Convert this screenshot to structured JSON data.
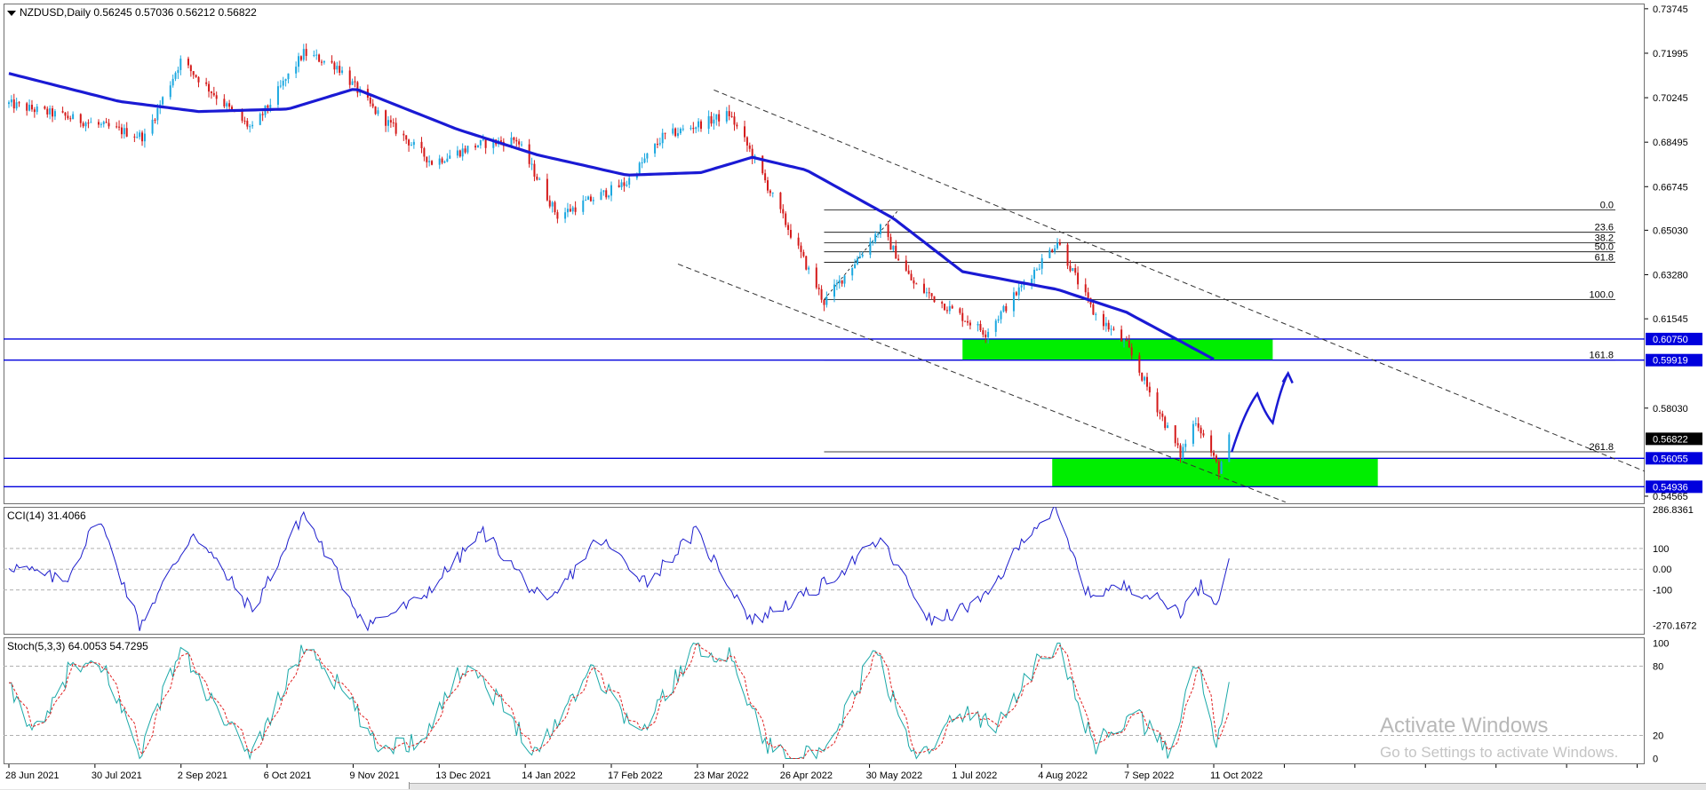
{
  "symbol_header": "NZDUSD,Daily  0.56245 0.57036 0.56212 0.56822",
  "cci_label": "CCI(14) 31.4066",
  "stoch_label": "Stoch(5,3,3) 64.0053 54.7295",
  "watermark": {
    "title": "Activate Windows",
    "subtitle": "Go to Settings to activate Windows."
  },
  "colors": {
    "bull": "#1ca8e0",
    "bear": "#d41a1a",
    "ma": "#1a1ad4",
    "zone": "#00ee00",
    "level_line": "#0000dd",
    "indicator": "#1c1ccc",
    "stoch_main": "#1aa8a8",
    "stoch_signal": "#e02020"
  },
  "chart_data": [
    {
      "type": "candlestick",
      "name": "NZDUSD, Daily",
      "ylim": [
        0.5425,
        0.7395
      ],
      "y_ticks": [
        "0.73745",
        "0.71995",
        "0.70245",
        "0.68495",
        "0.66745",
        "0.65030",
        "0.63280",
        "0.61545",
        "0.58030",
        "0.54565"
      ],
      "x_ticks": [
        "28 Jun 2021",
        "30 Jul 2021",
        "2 Sep 2021",
        "6 Oct 2021",
        "9 Nov 2021",
        "13 Dec 2021",
        "14 Jan 2022",
        "17 Feb 2022",
        "23 Mar 2022",
        "26 Apr 2022",
        "30 May 2022",
        "1 Jul 2022",
        "4 Aug 2022",
        "7 Sep 2022",
        "11 Oct 2022"
      ],
      "ohlc_anchors": [
        {
          "date": "2021-06-28",
          "close": 0.7
        },
        {
          "date": "2021-07-20",
          "close": 0.695
        },
        {
          "date": "2021-08-20",
          "close": 0.687
        },
        {
          "date": "2021-09-03",
          "close": 0.717
        },
        {
          "date": "2021-09-24",
          "close": 0.696
        },
        {
          "date": "2021-10-01",
          "close": 0.69
        },
        {
          "date": "2021-10-21",
          "close": 0.72
        },
        {
          "date": "2021-11-03",
          "close": 0.715
        },
        {
          "date": "2021-11-18",
          "close": 0.697
        },
        {
          "date": "2021-12-10",
          "close": 0.677
        },
        {
          "date": "2021-12-28",
          "close": 0.684
        },
        {
          "date": "2022-01-12",
          "close": 0.686
        },
        {
          "date": "2022-01-28",
          "close": 0.656
        },
        {
          "date": "2022-02-24",
          "close": 0.669
        },
        {
          "date": "2022-03-10",
          "close": 0.687
        },
        {
          "date": "2022-04-05",
          "close": 0.696
        },
        {
          "date": "2022-04-14",
          "close": 0.68
        },
        {
          "date": "2022-05-12",
          "close": 0.622
        },
        {
          "date": "2022-06-03",
          "close": 0.651
        },
        {
          "date": "2022-06-16",
          "close": 0.629
        },
        {
          "date": "2022-07-14",
          "close": 0.61
        },
        {
          "date": "2022-08-11",
          "close": 0.646
        },
        {
          "date": "2022-08-25",
          "close": 0.618
        },
        {
          "date": "2022-09-07",
          "close": 0.605
        },
        {
          "date": "2022-09-28",
          "close": 0.562
        },
        {
          "date": "2022-10-04",
          "close": 0.576
        },
        {
          "date": "2022-10-13",
          "close": 0.556
        },
        {
          "date": "2022-10-17",
          "close": 0.5682
        }
      ],
      "last_price": "0.56822",
      "moving_average": [
        {
          "date": "2021-06-28",
          "value": 0.712
        },
        {
          "date": "2021-08-10",
          "value": 0.701
        },
        {
          "date": "2021-09-10",
          "value": 0.697
        },
        {
          "date": "2021-10-15",
          "value": 0.698
        },
        {
          "date": "2021-11-10",
          "value": 0.706
        },
        {
          "date": "2021-12-20",
          "value": 0.69
        },
        {
          "date": "2022-01-20",
          "value": 0.68
        },
        {
          "date": "2022-02-24",
          "value": 0.672
        },
        {
          "date": "2022-03-25",
          "value": 0.673
        },
        {
          "date": "2022-04-14",
          "value": 0.679
        },
        {
          "date": "2022-05-05",
          "value": 0.674
        },
        {
          "date": "2022-06-08",
          "value": 0.655
        },
        {
          "date": "2022-07-05",
          "value": 0.634
        },
        {
          "date": "2022-08-11",
          "value": 0.627
        },
        {
          "date": "2022-09-07",
          "value": 0.618
        },
        {
          "date": "2022-10-12",
          "value": 0.599
        }
      ],
      "fibonacci": {
        "levels": [
          {
            "label": "0.0",
            "price": 0.6583
          },
          {
            "label": "23.6",
            "price": 0.6495
          },
          {
            "label": "38.2",
            "price": 0.6454
          },
          {
            "label": "50.0",
            "price": 0.6418
          },
          {
            "label": "61.8",
            "price": 0.6377
          },
          {
            "label": "100.0",
            "price": 0.623
          },
          {
            "label": "161.8",
            "price": 0.5992
          },
          {
            "label": "261.8",
            "price": 0.5631
          }
        ]
      },
      "horizontal_levels": [
        "0.60750",
        "0.59919",
        "0.56055",
        "0.54936"
      ],
      "zones": [
        {
          "top": 0.6075,
          "bottom": 0.5992,
          "from": "2022-07-05",
          "to": "2022-11-03"
        },
        {
          "top": 0.5605,
          "bottom": 0.5494,
          "from": "2022-08-09",
          "to": "2022-12-14"
        }
      ],
      "channel": [
        {
          "from": {
            "date": "2022-03-30",
            "price": 0.7055
          },
          "to": {
            "date": "2023-04-20",
            "price": 0.546
          }
        },
        {
          "from": {
            "date": "2022-03-16",
            "price": 0.637
          },
          "to": {
            "date": "2022-11-08",
            "price": 0.5433
          }
        }
      ],
      "projection_path": [
        {
          "date": "2022-10-18",
          "price": 0.563
        },
        {
          "date": "2022-10-28",
          "price": 0.586
        },
        {
          "date": "2022-11-03",
          "price": 0.5745
        },
        {
          "date": "2022-11-09",
          "price": 0.594
        }
      ]
    },
    {
      "type": "line",
      "name": "CCI(14)",
      "ylim": [
        -315,
        300
      ],
      "y_ticks": [
        "286.8361",
        "100",
        "0.00",
        "-100",
        "-270.1672"
      ],
      "reference_lines": [
        100,
        0,
        -100
      ],
      "last_value": 31.4066,
      "anchors": [
        {
          "date": "2021-06-28",
          "value": 20
        },
        {
          "date": "2021-07-20",
          "value": -60
        },
        {
          "date": "2021-08-02",
          "value": 250
        },
        {
          "date": "2021-08-18",
          "value": -270
        },
        {
          "date": "2021-09-08",
          "value": 180
        },
        {
          "date": "2021-10-01",
          "value": -200
        },
        {
          "date": "2021-10-21",
          "value": 270
        },
        {
          "date": "2021-11-14",
          "value": -270
        },
        {
          "date": "2021-12-05",
          "value": -150
        },
        {
          "date": "2021-12-30",
          "value": 180
        },
        {
          "date": "2022-01-24",
          "value": -180
        },
        {
          "date": "2022-02-13",
          "value": 150
        },
        {
          "date": "2022-03-04",
          "value": -60
        },
        {
          "date": "2022-03-23",
          "value": 180
        },
        {
          "date": "2022-04-14",
          "value": -250
        },
        {
          "date": "2022-05-09",
          "value": -100
        },
        {
          "date": "2022-06-03",
          "value": 140
        },
        {
          "date": "2022-06-23",
          "value": -260
        },
        {
          "date": "2022-07-14",
          "value": -140
        },
        {
          "date": "2022-08-01",
          "value": 200
        },
        {
          "date": "2022-08-10",
          "value": 280
        },
        {
          "date": "2022-08-23",
          "value": -120
        },
        {
          "date": "2022-09-08",
          "value": -80
        },
        {
          "date": "2022-09-28",
          "value": -200
        },
        {
          "date": "2022-10-06",
          "value": -80
        },
        {
          "date": "2022-10-12",
          "value": -150
        },
        {
          "date": "2022-10-17",
          "value": 31.4
        }
      ]
    },
    {
      "type": "line",
      "name": "Stoch(5,3,3)",
      "ylim": [
        -5,
        105
      ],
      "y_ticks": [
        "100",
        "80",
        "20",
        "0"
      ],
      "reference_lines": [
        80,
        20
      ],
      "main_last": 64.0053,
      "signal_last": 54.7295,
      "anchors": [
        {
          "date": "2021-06-28",
          "value": 60
        },
        {
          "date": "2021-07-10",
          "value": 20
        },
        {
          "date": "2021-07-22",
          "value": 80
        },
        {
          "date": "2021-08-05",
          "value": 75
        },
        {
          "date": "2021-08-18",
          "value": 5
        },
        {
          "date": "2021-09-03",
          "value": 95
        },
        {
          "date": "2021-09-20",
          "value": 30
        },
        {
          "date": "2021-10-01",
          "value": 5
        },
        {
          "date": "2021-10-22",
          "value": 100
        },
        {
          "date": "2021-11-08",
          "value": 50
        },
        {
          "date": "2021-11-18",
          "value": 10
        },
        {
          "date": "2021-12-05",
          "value": 15
        },
        {
          "date": "2021-12-24",
          "value": 85
        },
        {
          "date": "2022-01-20",
          "value": 5
        },
        {
          "date": "2022-02-10",
          "value": 80
        },
        {
          "date": "2022-03-01",
          "value": 20
        },
        {
          "date": "2022-03-22",
          "value": 95
        },
        {
          "date": "2022-04-05",
          "value": 90
        },
        {
          "date": "2022-04-20",
          "value": 10
        },
        {
          "date": "2022-05-12",
          "value": 0
        },
        {
          "date": "2022-06-01",
          "value": 95
        },
        {
          "date": "2022-06-16",
          "value": 0
        },
        {
          "date": "2022-07-05",
          "value": 40
        },
        {
          "date": "2022-07-18",
          "value": 30
        },
        {
          "date": "2022-08-04",
          "value": 85
        },
        {
          "date": "2022-08-12",
          "value": 95
        },
        {
          "date": "2022-08-25",
          "value": 10
        },
        {
          "date": "2022-09-10",
          "value": 40
        },
        {
          "date": "2022-09-23",
          "value": 5
        },
        {
          "date": "2022-10-05",
          "value": 85
        },
        {
          "date": "2022-10-12",
          "value": 5
        },
        {
          "date": "2022-10-17",
          "value": 64
        }
      ]
    }
  ]
}
